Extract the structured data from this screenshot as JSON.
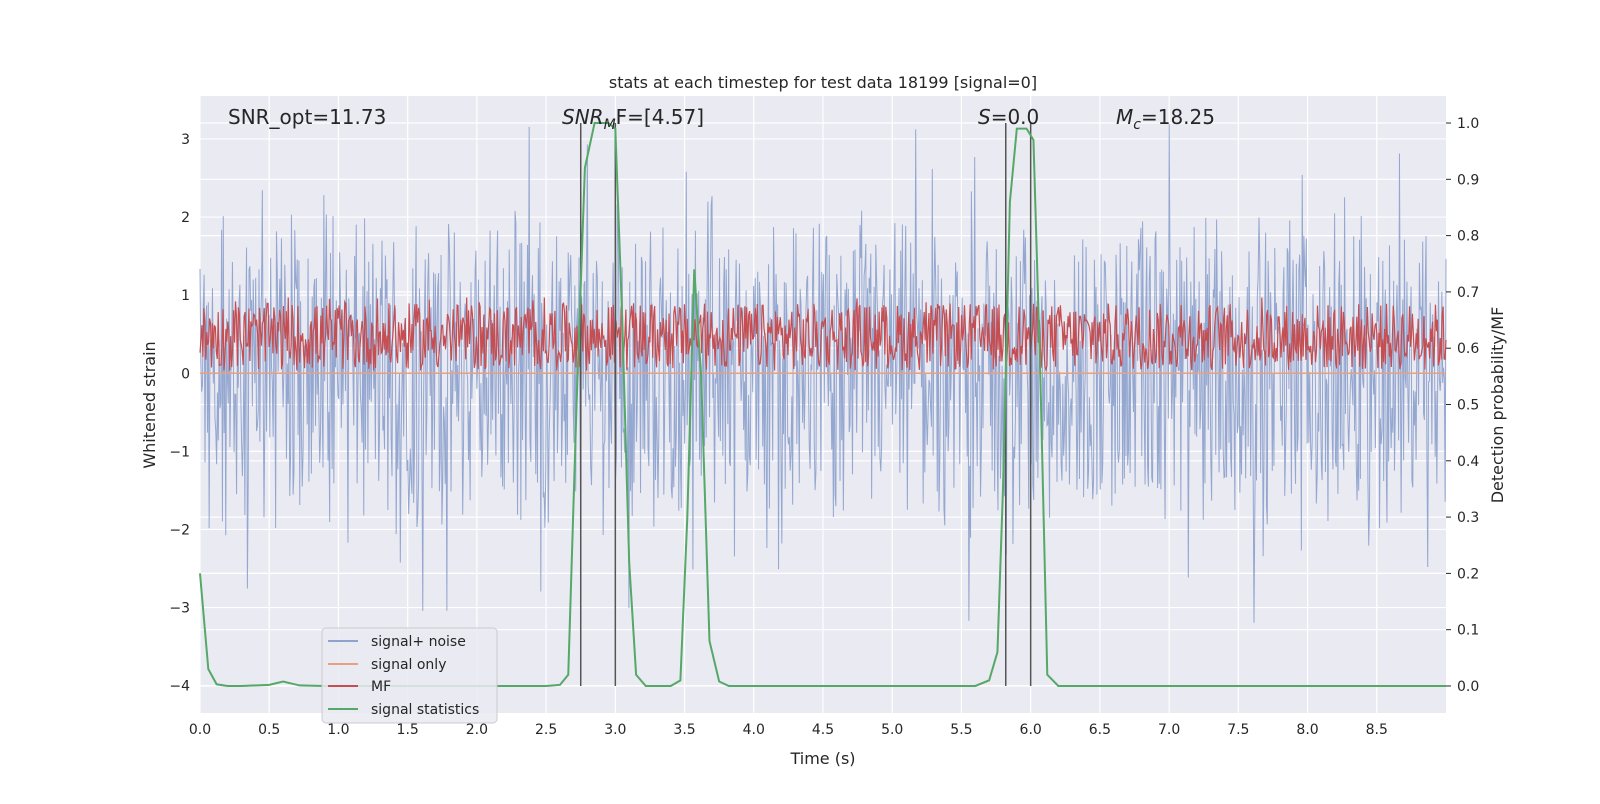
{
  "chart_data": {
    "type": "line",
    "title": "stats at each timestep for test data 18199 [signal=0]",
    "xlabel": "Time (s)",
    "ylabel_left": "Whitened strain",
    "ylabel_right": "Detection probability/MF",
    "xlim": [
      0.0,
      9.0
    ],
    "ylim_left": [
      -4.35,
      3.55
    ],
    "ylim_right": [
      -0.048,
      1.048
    ],
    "xticks": [
      "0.0",
      "0.5",
      "1.0",
      "1.5",
      "2.0",
      "2.5",
      "3.0",
      "3.5",
      "4.0",
      "4.5",
      "5.0",
      "5.5",
      "6.0",
      "6.5",
      "7.0",
      "7.5",
      "8.0",
      "8.5"
    ],
    "yticks_left": [
      "3",
      "2",
      "1",
      "0",
      "−1",
      "−2",
      "−3",
      "−4"
    ],
    "yticks_right": [
      "1.0",
      "0.9",
      "0.8",
      "0.7",
      "0.6",
      "0.5",
      "0.4",
      "0.3",
      "0.2",
      "0.1",
      "0.0"
    ],
    "grid": true,
    "legend_placement": "lower-left",
    "annotations": {
      "snr_opt": "SNR_opt=11.73",
      "snr_mf_name": "SNR",
      "snr_mf_sub": "M",
      "snr_mf_rest": "F=[4.57]",
      "s_name": "S",
      "s_rest": "=0.0",
      "mc_name": "M",
      "mc_sub": "c",
      "mc_rest": "=18.25"
    },
    "vertical_lines_x": [
      2.75,
      3.0,
      5.82,
      6.0
    ],
    "series": [
      {
        "name": "signal+ noise",
        "axis": "left",
        "color": "#8fa3cd",
        "style": "noise",
        "amplitude_typical": 1.7,
        "amplitude_peak": 3.2
      },
      {
        "name": "signal only",
        "axis": "left",
        "color": "#e8a080",
        "style": "flat",
        "value": 0.0
      },
      {
        "name": "MF",
        "axis": "right",
        "color": "#c44e52",
        "style": "band",
        "range": [
          0.56,
          0.68
        ]
      },
      {
        "name": "signal statistics",
        "axis": "right",
        "color": "#55a868",
        "x": [
          0.0,
          0.06,
          0.12,
          0.2,
          0.3,
          0.5,
          0.6,
          0.65,
          0.72,
          0.9,
          1.5,
          2.0,
          2.5,
          2.6,
          2.66,
          2.72,
          2.78,
          2.85,
          2.95,
          3.0,
          3.05,
          3.1,
          3.15,
          3.22,
          3.3,
          3.4,
          3.47,
          3.52,
          3.57,
          3.62,
          3.68,
          3.75,
          3.82,
          4.0,
          5.0,
          5.6,
          5.7,
          5.76,
          5.8,
          5.85,
          5.9,
          5.97,
          6.02,
          6.07,
          6.12,
          6.2,
          6.5,
          7.0,
          8.0,
          9.0
        ],
        "y": [
          0.2,
          0.03,
          0.003,
          0.0,
          0.0,
          0.002,
          0.008,
          0.005,
          0.001,
          0.0,
          0.0,
          0.0,
          0.0,
          0.002,
          0.02,
          0.5,
          0.92,
          1.0,
          1.0,
          0.99,
          0.65,
          0.22,
          0.02,
          0.0,
          0.0,
          0.0,
          0.01,
          0.3,
          0.74,
          0.55,
          0.08,
          0.008,
          0.0,
          0.0,
          0.0,
          0.0,
          0.01,
          0.06,
          0.35,
          0.86,
          0.99,
          0.99,
          0.97,
          0.55,
          0.02,
          0.0,
          0.0,
          0.0,
          0.0,
          0.0
        ]
      }
    ]
  }
}
